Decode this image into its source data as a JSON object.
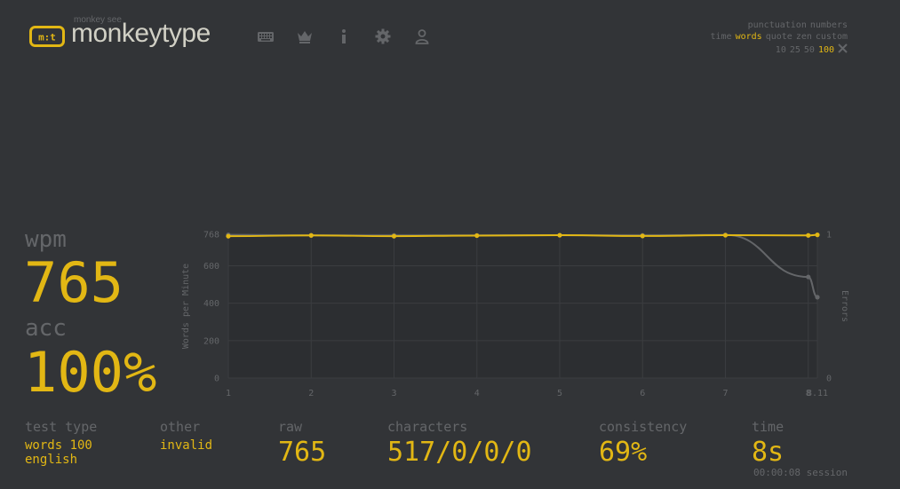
{
  "header": {
    "logo_subtitle": "monkey see",
    "logo_title": "monkeytype",
    "nav": [
      "keyboard-icon",
      "crown-icon",
      "info-icon",
      "settings-icon",
      "account-icon"
    ]
  },
  "config": {
    "row1": [
      "punctuation",
      "numbers"
    ],
    "modes": [
      "time",
      "words",
      "quote",
      "zen",
      "custom"
    ],
    "active_mode": "words",
    "word_counts": [
      "10",
      "25",
      "50",
      "100"
    ],
    "active_count": "100",
    "custom_icon": "tools-icon"
  },
  "result": {
    "wpm_label": "wpm",
    "wpm": "765",
    "acc_label": "acc",
    "acc": "100%",
    "test_type_label": "test type",
    "test_type_line1": "words 100",
    "test_type_line2": "english",
    "other_label": "other",
    "other_value": "invalid",
    "raw_label": "raw",
    "raw_value": "765",
    "characters_label": "characters",
    "characters_value": "517/0/0/0",
    "consistency_label": "consistency",
    "consistency_value": "69%",
    "time_label": "time",
    "time_value": "8s",
    "session_value": "00:00:08 session"
  },
  "colors": {
    "background": "#323437",
    "accent": "#e2b714",
    "sub": "#646669",
    "text": "#d1d0c5"
  },
  "chart_data": {
    "type": "line",
    "x": [
      "1",
      "2",
      "3",
      "4",
      "5",
      "6",
      "7",
      "8",
      "8.11"
    ],
    "x_values": [
      1,
      2,
      3,
      4,
      5,
      6,
      7,
      8,
      8.11
    ],
    "ylabel": "Words per Minute",
    "y2label": "Errors",
    "y_ticks": [
      0,
      200,
      400,
      600,
      768
    ],
    "y_top_label": "768",
    "ylim": [
      0,
      768
    ],
    "y2_ticks": [
      "0",
      "1"
    ],
    "grid": true,
    "series": [
      {
        "role": "wpm",
        "color": "#e2b714",
        "values": [
          758,
          762,
          758,
          761,
          763,
          759,
          763,
          762,
          765
        ]
      },
      {
        "role": "raw",
        "color": "#646669",
        "values": [
          765,
          762,
          762,
          762,
          763,
          762,
          765,
          540,
          432
        ]
      }
    ]
  }
}
